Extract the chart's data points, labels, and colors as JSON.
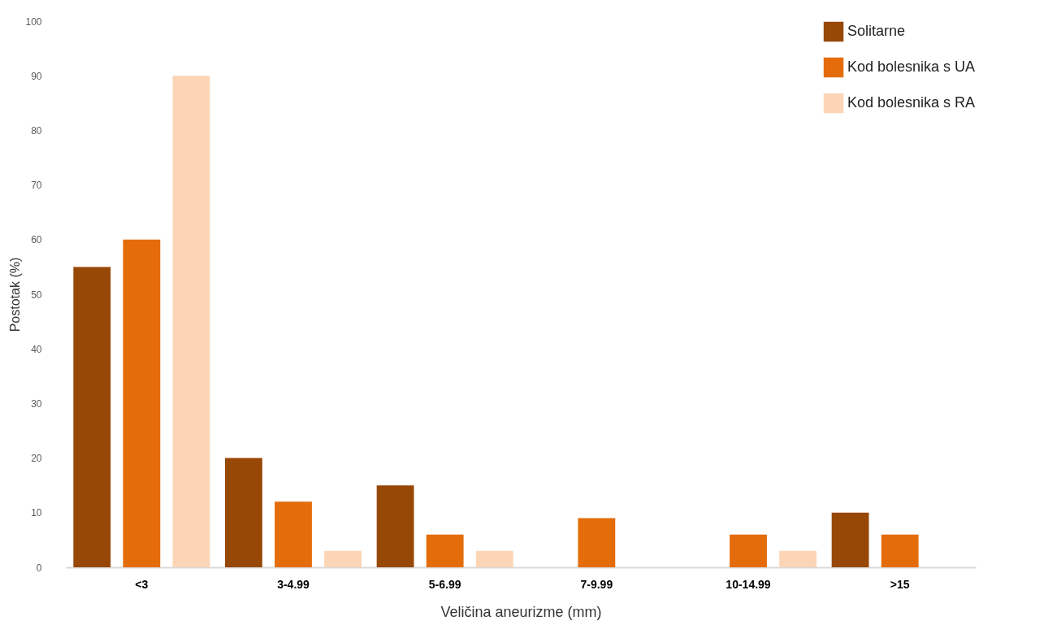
{
  "chart_data": {
    "type": "bar",
    "xlabel": "Veličina aneurizme (mm)",
    "ylabel": "Postotak (%)",
    "categories": [
      "<3",
      "3-4.99",
      "5-6.99",
      "7-9.99",
      "10-14.99",
      ">15"
    ],
    "series": [
      {
        "name": "Solitarne",
        "color": "#974706",
        "values": [
          55,
          20,
          15,
          null,
          null,
          10
        ]
      },
      {
        "name": "Kod bolesnika s UA",
        "color": "#e46c0a",
        "values": [
          60,
          12,
          6,
          9,
          6,
          6
        ]
      },
      {
        "name": "Kod bolesnika s RA",
        "color": "#fbd5b5",
        "values": [
          90,
          3,
          3,
          null,
          3,
          null
        ]
      }
    ],
    "ylim": [
      0,
      100
    ],
    "yticks": [
      0,
      10,
      20,
      30,
      40,
      50,
      60,
      70,
      80,
      90,
      100
    ],
    "grid": false,
    "legend": "top right"
  }
}
